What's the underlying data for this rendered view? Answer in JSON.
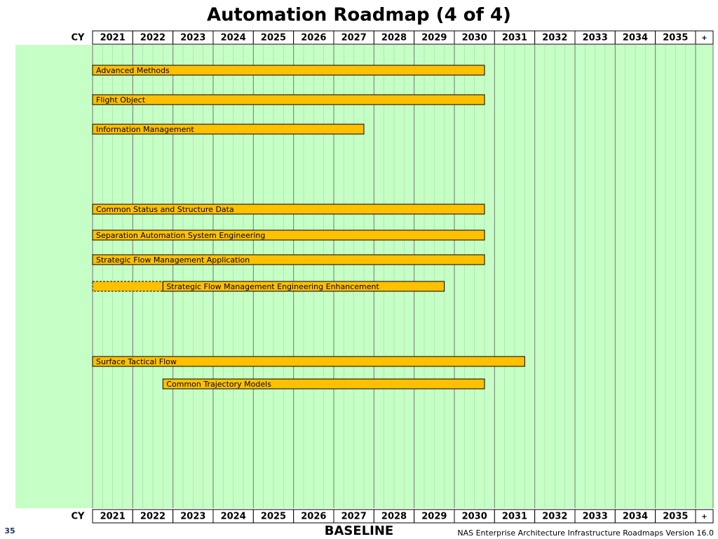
{
  "chart_data": {
    "type": "gantt",
    "title": "Automation Roadmap (4 of 4)",
    "axis_label": "CY",
    "categories": [
      "2021",
      "2022",
      "2023",
      "2024",
      "2025",
      "2026",
      "2027",
      "2028",
      "2029",
      "2030",
      "2031",
      "2032",
      "2033",
      "2034",
      "2035",
      "+"
    ],
    "xlim": [
      2021,
      2036
    ],
    "xticks": [
      2021,
      2022,
      2023,
      2024,
      2025,
      2026,
      2027,
      2028,
      2029,
      2030,
      2031,
      2032,
      2033,
      2034,
      2035,
      2036
    ],
    "color": "#ffc000",
    "background": "#c6ffc6",
    "tasks": [
      {
        "name": "Advanced Methods",
        "start": 2021,
        "end": 2030.75
      },
      {
        "name": "Flight Object",
        "start": 2021,
        "end": 2030.75
      },
      {
        "name": "Information Management",
        "start": 2021,
        "end": 2027.75
      },
      {
        "name": "Common Status and Structure Data",
        "start": 2021,
        "end": 2030.75
      },
      {
        "name": "Separation Automation System Engineering",
        "start": 2021,
        "end": 2030.75
      },
      {
        "name": "Strategic Flow Management Application",
        "start": 2021,
        "end": 2030.75
      },
      {
        "name": "Strategic Flow Management Engineering Enhancement",
        "dashed_start": 2021,
        "start": 2022.75,
        "end": 2029.75
      },
      {
        "name": "Surface Tactical Flow",
        "start": 2021,
        "end": 2031.75
      },
      {
        "name": "Common Trajectory Models",
        "start": 2022.75,
        "end": 2030.75
      }
    ]
  },
  "footer": {
    "page": "35",
    "status": "BASELINE",
    "source": "NAS Enterprise Architecture Infrastructure Roadmaps Version 16.0"
  }
}
